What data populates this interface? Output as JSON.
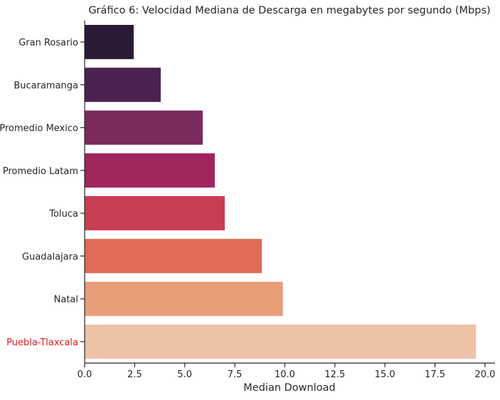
{
  "chart_data": {
    "type": "bar",
    "orientation": "horizontal",
    "title": "Gráfico 6: Velocidad Mediana de Descarga en megabytes por segundo (Mbps)",
    "xlabel": "Median Download",
    "ylabel": "",
    "xlim": [
      0,
      20.5
    ],
    "xticks": [
      "0.0",
      "2.5",
      "5.0",
      "7.5",
      "10.0",
      "12.5",
      "15.0",
      "17.5",
      "20.0"
    ],
    "grid": false,
    "categories": [
      "Gran Rosario",
      "Bucaramanga",
      "Promedio Mexico",
      "Promedio Latam",
      "Toluca",
      "Guadalajara",
      "Natal",
      "Puebla-Tlaxcala"
    ],
    "values": [
      2.45,
      3.8,
      5.9,
      6.5,
      7.0,
      8.85,
      9.9,
      19.55
    ],
    "bar_colors": [
      "#2b1a36",
      "#4c2150",
      "#7b2a5c",
      "#a1255d",
      "#c93d55",
      "#df6b56",
      "#e99c78",
      "#edc2a7"
    ],
    "label_colors": [
      "#262626",
      "#262626",
      "#262626",
      "#262626",
      "#262626",
      "#262626",
      "#262626",
      "#e31a1c"
    ]
  }
}
